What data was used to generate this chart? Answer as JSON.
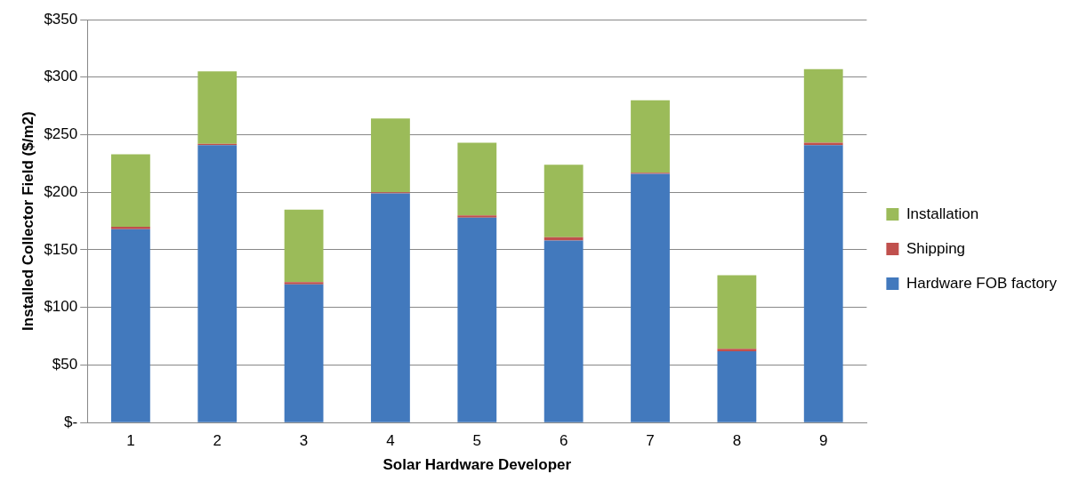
{
  "chart_data": {
    "type": "bar",
    "stacked": true,
    "xlabel": "Solar Hardware Developer",
    "ylabel": "Installed Collector Field ($/m2)",
    "categories": [
      "1",
      "2",
      "3",
      "4",
      "5",
      "6",
      "7",
      "8",
      "9"
    ],
    "series": [
      {
        "name": "Hardware FOB factory",
        "color": "#4279bd",
        "values": [
          168,
          241,
          120,
          199,
          178,
          158,
          216,
          62,
          241
        ]
      },
      {
        "name": "Shipping",
        "color": "#c0504d",
        "values": [
          2,
          1,
          2,
          1,
          2,
          3,
          1,
          2,
          2
        ]
      },
      {
        "name": "Installation",
        "color": "#9bbb59",
        "values": [
          63,
          63,
          63,
          64,
          63,
          63,
          63,
          64,
          64
        ]
      }
    ],
    "ylim": [
      0,
      350
    ],
    "yticks": [
      {
        "value": 0,
        "label": "$-"
      },
      {
        "value": 50,
        "label": "$50"
      },
      {
        "value": 100,
        "label": "$100"
      },
      {
        "value": 150,
        "label": "$150"
      },
      {
        "value": 200,
        "label": "$200"
      },
      {
        "value": 250,
        "label": "$250"
      },
      {
        "value": 300,
        "label": "$300"
      },
      {
        "value": 350,
        "label": "$350"
      }
    ],
    "grid": "y",
    "legend": "right"
  }
}
